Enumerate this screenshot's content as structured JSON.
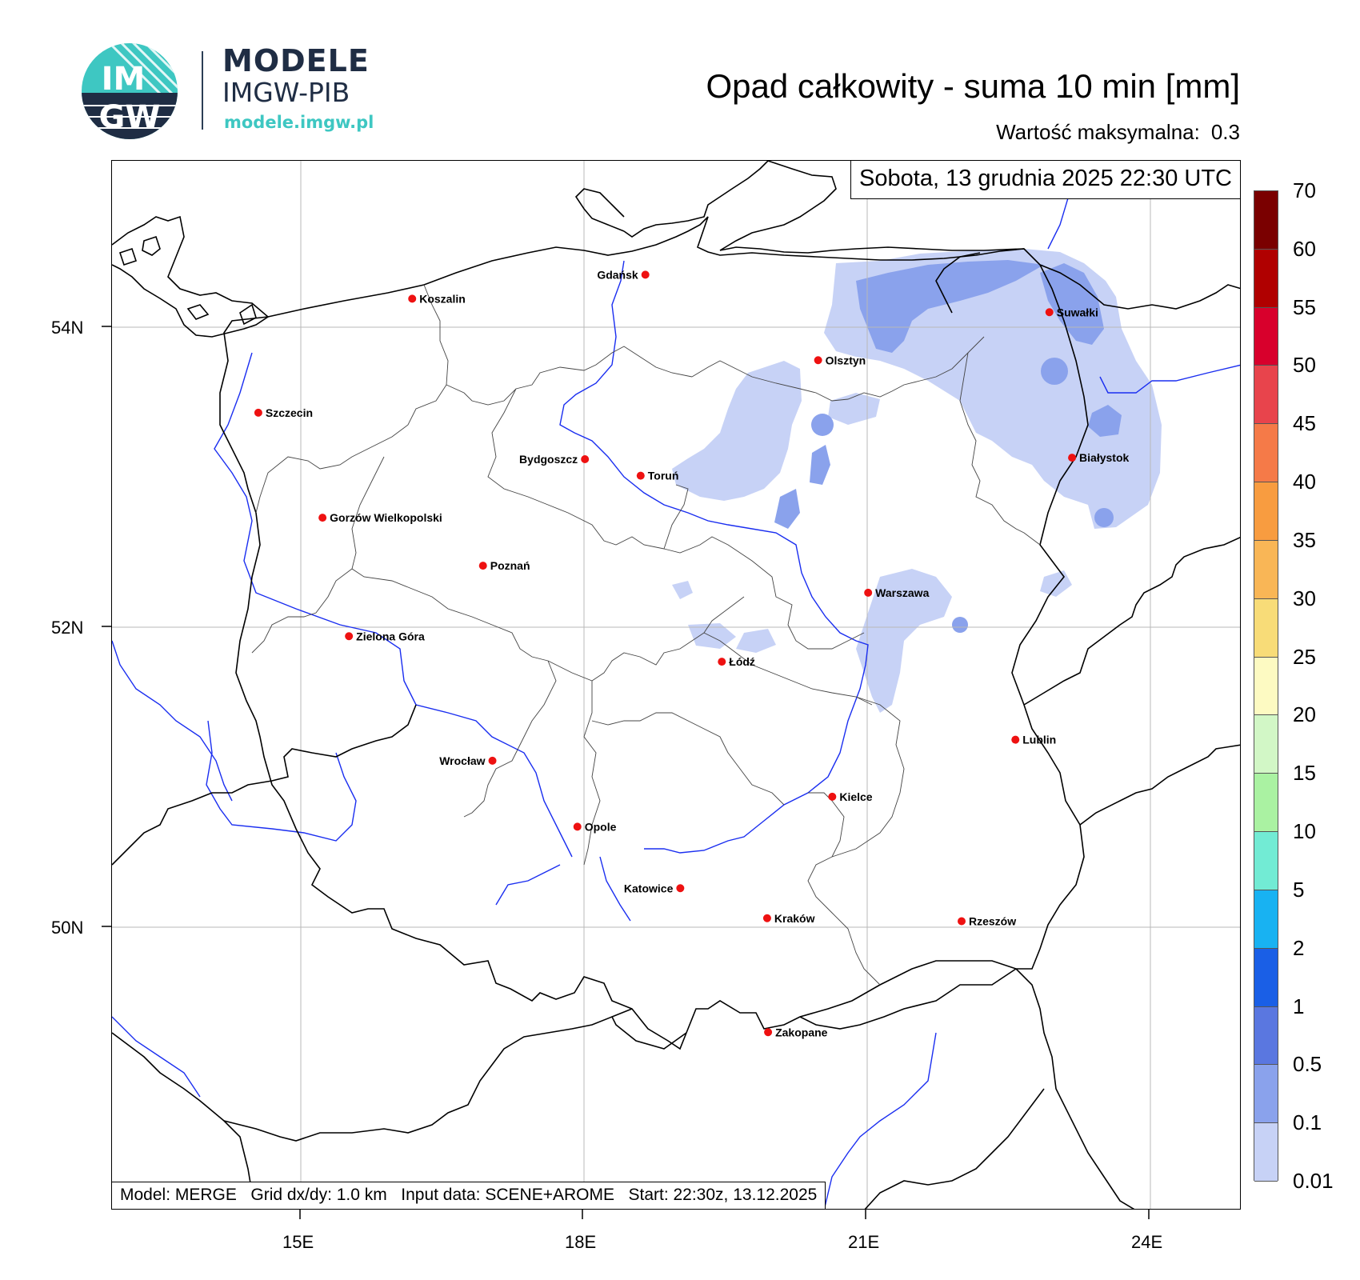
{
  "logo": {
    "badge_top": "IM",
    "badge_bottom": "GW",
    "line1": "MODELE",
    "line2": "IMGW-PIB",
    "line3": "modele.imgw.pl"
  },
  "title": "Opad całkowity - suma 10 min [mm]",
  "max_label": "Wartość maksymalna:",
  "max_value": "0.3",
  "date": "Sobota, 13 grudnia 2025 22:30 UTC",
  "info": "Model: MERGE   Grid dx/dy: 1.0 km   Input data: SCENE+AROME   Start: 22:30z, 13.12.2025",
  "lat_ticks": [
    "54N",
    "52N",
    "50N"
  ],
  "lon_ticks": [
    "15E",
    "18E",
    "21E",
    "24E"
  ],
  "colorbar": {
    "labels": [
      "70",
      "60",
      "55",
      "50",
      "45",
      "40",
      "35",
      "30",
      "25",
      "20",
      "15",
      "10",
      "5",
      "2",
      "1",
      "0.5",
      "0.1",
      "0.01"
    ],
    "colors": [
      "#7a0000",
      "#b00000",
      "#d8002c",
      "#e8444c",
      "#f57a48",
      "#f89c40",
      "#f9b656",
      "#f8dc78",
      "#fdfac2",
      "#d2f7c6",
      "#aaf2a2",
      "#72ebd4",
      "#18b2f2",
      "#1a5fe6",
      "#5a77e0",
      "#8aa2ec",
      "#c7d2f6"
    ]
  },
  "cities": [
    {
      "name": "Gdańsk",
      "lon": 18.65,
      "lat": 54.35,
      "anchor": "end"
    },
    {
      "name": "Koszalin",
      "lon": 16.18,
      "lat": 54.19,
      "anchor": "start"
    },
    {
      "name": "Suwałki",
      "lon": 22.93,
      "lat": 54.1,
      "anchor": "start"
    },
    {
      "name": "Olsztyn",
      "lon": 20.48,
      "lat": 53.78,
      "anchor": "start"
    },
    {
      "name": "Szczecin",
      "lon": 14.55,
      "lat": 53.43,
      "anchor": "start"
    },
    {
      "name": "Bydgoszcz",
      "lon": 18.01,
      "lat": 53.12,
      "anchor": "end"
    },
    {
      "name": "Białystok",
      "lon": 23.17,
      "lat": 53.13,
      "anchor": "start"
    },
    {
      "name": "Toruń",
      "lon": 18.6,
      "lat": 53.01,
      "anchor": "start"
    },
    {
      "name": "Gorzów Wielkopolski",
      "lon": 15.23,
      "lat": 52.73,
      "anchor": "start"
    },
    {
      "name": "Poznań",
      "lon": 16.93,
      "lat": 52.41,
      "anchor": "start"
    },
    {
      "name": "Warszawa",
      "lon": 21.01,
      "lat": 52.23,
      "anchor": "start"
    },
    {
      "name": "Zielona Góra",
      "lon": 15.51,
      "lat": 51.94,
      "anchor": "start"
    },
    {
      "name": "Łódź",
      "lon": 19.46,
      "lat": 51.77,
      "anchor": "start"
    },
    {
      "name": "Lublin",
      "lon": 22.57,
      "lat": 51.25,
      "anchor": "start"
    },
    {
      "name": "Wrocław",
      "lon": 17.03,
      "lat": 51.11,
      "anchor": "end"
    },
    {
      "name": "Kielce",
      "lon": 20.63,
      "lat": 50.87,
      "anchor": "start"
    },
    {
      "name": "Opole",
      "lon": 17.93,
      "lat": 50.67,
      "anchor": "start"
    },
    {
      "name": "Katowice",
      "lon": 19.02,
      "lat": 50.26,
      "anchor": "end"
    },
    {
      "name": "Rzeszów",
      "lon": 22.0,
      "lat": 50.04,
      "anchor": "start"
    },
    {
      "name": "Kraków",
      "lon": 19.94,
      "lat": 50.06,
      "anchor": "start"
    },
    {
      "name": "Zakopane",
      "lon": 19.95,
      "lat": 49.3,
      "anchor": "start"
    }
  ]
}
